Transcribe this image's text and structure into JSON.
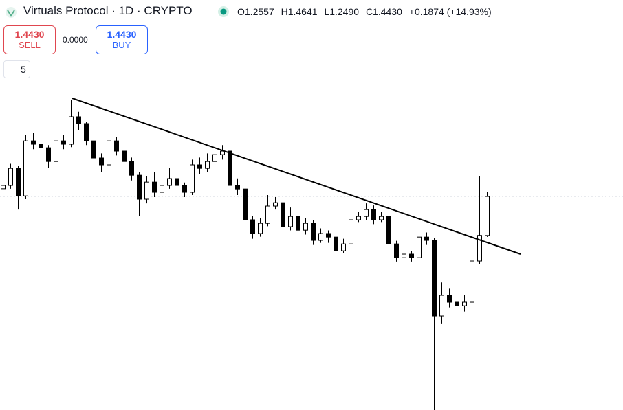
{
  "header": {
    "symbol": "Virtuals Protocol · 1D · CRYPTO",
    "ohlc": [
      "O1.2557",
      "H1.4641",
      "L1.2490",
      "C1.4430",
      "+0.1874 (+14.93%)"
    ]
  },
  "trade": {
    "sell_price": "1.4430",
    "sell_label": "SELL",
    "spread": "0.0000",
    "buy_price": "1.4430",
    "buy_label": "BUY"
  },
  "indicators_count": "5",
  "chart_data": {
    "type": "candlestick",
    "ylim": [
      0.417,
      2.387
    ],
    "up_color": "#ffffff",
    "down_color": "#000000",
    "edge_color": "#000000",
    "open": [
      1.48,
      1.496,
      1.578,
      1.446,
      1.71,
      1.694,
      1.677,
      1.611,
      1.71,
      1.694,
      1.826,
      1.793,
      1.71,
      1.628,
      1.595,
      1.71,
      1.661,
      1.611,
      1.545,
      1.43,
      1.512,
      1.463,
      1.496,
      1.529,
      1.496,
      1.463,
      1.595,
      1.578,
      1.611,
      1.644,
      1.661,
      1.496,
      1.479,
      1.331,
      1.265,
      1.314,
      1.397,
      1.413,
      1.298,
      1.347,
      1.281,
      1.314,
      1.232,
      1.265,
      1.248,
      1.182,
      1.215,
      1.331,
      1.347,
      1.38,
      1.331,
      1.347,
      1.215,
      1.149,
      1.166,
      1.149,
      1.248,
      1.232,
      0.869,
      0.968,
      0.935,
      0.918,
      0.935,
      1.133,
      1.2557
    ],
    "high": [
      1.52,
      1.6,
      1.59,
      1.74,
      1.75,
      1.72,
      1.69,
      1.73,
      1.74,
      1.908,
      1.85,
      1.8,
      1.72,
      1.65,
      1.82,
      1.73,
      1.68,
      1.63,
      1.56,
      1.54,
      1.56,
      1.53,
      1.58,
      1.55,
      1.51,
      1.62,
      1.63,
      1.65,
      1.67,
      1.69,
      1.67,
      1.53,
      1.49,
      1.35,
      1.34,
      1.45,
      1.44,
      1.42,
      1.39,
      1.37,
      1.34,
      1.33,
      1.29,
      1.28,
      1.26,
      1.24,
      1.35,
      1.37,
      1.41,
      1.4,
      1.37,
      1.36,
      1.23,
      1.19,
      1.18,
      1.27,
      1.27,
      1.245,
      1.03,
      1.0,
      0.96,
      0.97,
      1.15,
      1.54,
      1.4641
    ],
    "low": [
      1.45,
      1.48,
      1.38,
      1.43,
      1.67,
      1.66,
      1.58,
      1.6,
      1.67,
      1.68,
      1.76,
      1.69,
      1.6,
      1.56,
      1.58,
      1.64,
      1.58,
      1.52,
      1.35,
      1.41,
      1.44,
      1.45,
      1.48,
      1.47,
      1.44,
      1.45,
      1.55,
      1.56,
      1.6,
      1.62,
      1.46,
      1.45,
      1.3,
      1.24,
      1.25,
      1.3,
      1.38,
      1.27,
      1.28,
      1.26,
      1.26,
      1.21,
      1.22,
      1.22,
      1.16,
      1.17,
      1.2,
      1.32,
      1.33,
      1.31,
      1.32,
      1.19,
      1.13,
      1.14,
      1.13,
      1.14,
      1.21,
      0.417,
      0.83,
      0.91,
      0.89,
      0.89,
      0.92,
      1.12,
      1.249
    ],
    "close": [
      1.496,
      1.578,
      1.446,
      1.71,
      1.694,
      1.677,
      1.611,
      1.71,
      1.694,
      1.826,
      1.793,
      1.71,
      1.628,
      1.595,
      1.71,
      1.661,
      1.611,
      1.545,
      1.43,
      1.512,
      1.463,
      1.496,
      1.529,
      1.496,
      1.463,
      1.595,
      1.578,
      1.611,
      1.644,
      1.661,
      1.496,
      1.479,
      1.331,
      1.265,
      1.314,
      1.397,
      1.413,
      1.298,
      1.347,
      1.281,
      1.314,
      1.232,
      1.265,
      1.248,
      1.182,
      1.215,
      1.331,
      1.347,
      1.38,
      1.331,
      1.347,
      1.215,
      1.149,
      1.166,
      1.149,
      1.248,
      1.232,
      0.869,
      0.968,
      0.935,
      0.918,
      0.935,
      1.133,
      1.256,
      1.443
    ]
  }
}
